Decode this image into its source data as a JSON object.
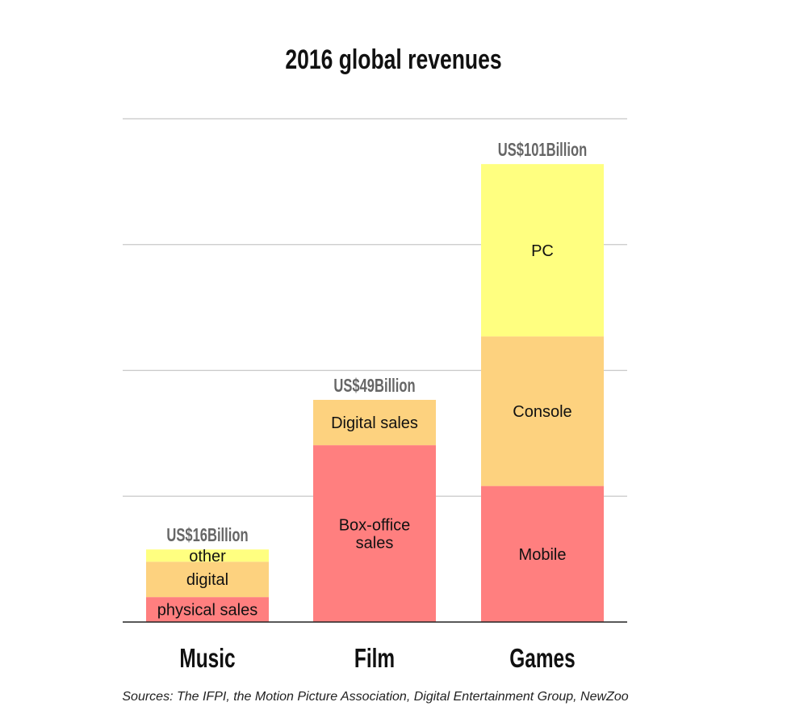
{
  "chart_data": {
    "type": "bar",
    "stacked": true,
    "title": "2016 global revenues",
    "categories": [
      "Music",
      "Film",
      "Games"
    ],
    "ylim": [
      0,
      111
    ],
    "grid": true,
    "bars": [
      {
        "category": "Music",
        "total": 16,
        "total_label": "US$16Billion",
        "segments": [
          {
            "name": "physical sales",
            "value": 5.5,
            "color": "#FF7F7F"
          },
          {
            "name": "digital",
            "value": 7.8,
            "color": "#FDD27F"
          },
          {
            "name": "other",
            "value": 2.7,
            "color": "#FFFF80"
          }
        ]
      },
      {
        "category": "Film",
        "total": 49,
        "total_label": "US$49Billion",
        "segments": [
          {
            "name": "Box-office sales",
            "value": 39,
            "color": "#FF7F7F"
          },
          {
            "name": "Digital sales",
            "value": 10,
            "color": "#FDD27F"
          }
        ]
      },
      {
        "category": "Games",
        "total": 101,
        "total_label": "US$101Billion",
        "segments": [
          {
            "name": "Mobile",
            "value": 30,
            "color": "#FF7F7F"
          },
          {
            "name": "Console",
            "value": 33,
            "color": "#FDD27F"
          },
          {
            "name": "PC",
            "value": 38,
            "color": "#FFFF80"
          }
        ]
      }
    ]
  },
  "source": "Sources: The IFPI, the Motion Picture Association, Digital Entertainment Group, NewZoo"
}
